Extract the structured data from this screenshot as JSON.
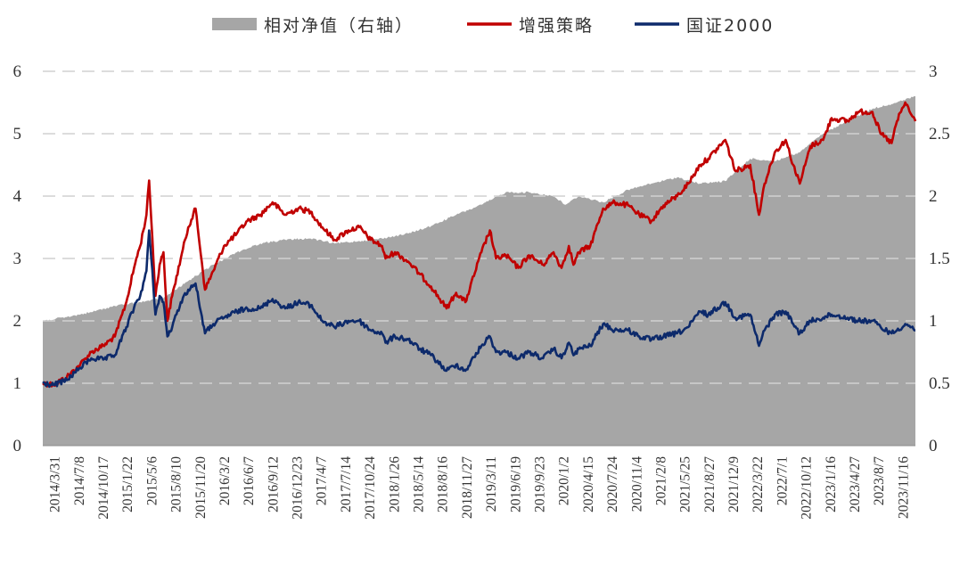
{
  "chart_data": {
    "type": "line",
    "legend": {
      "placement": "top-center",
      "items": [
        {
          "label": "相对净值（右轴）",
          "kind": "area",
          "color": "#a6a6a6"
        },
        {
          "label": "增强策略",
          "kind": "line",
          "color": "#c00000"
        },
        {
          "label": "国证2000",
          "kind": "line",
          "color": "#0d2a6b"
        }
      ]
    },
    "grid": true,
    "left_axis": {
      "min": 0,
      "max": 6,
      "ticks": [
        "0",
        "1",
        "2",
        "3",
        "4",
        "5",
        "6"
      ]
    },
    "right_axis": {
      "min": 0,
      "max": 3,
      "ticks": [
        "0",
        "0.5",
        "1",
        "1.5",
        "2",
        "2.5",
        "3"
      ]
    },
    "x_tick_labels": [
      "2014/3/31",
      "2014/7/8",
      "2014/10/17",
      "2015/1/22",
      "2015/5/6",
      "2015/8/10",
      "2015/11/20",
      "2016/3/2",
      "2016/6/7",
      "2016/9/12",
      "2016/12/23",
      "2017/4/7",
      "2017/7/14",
      "2017/10/24",
      "2018/1/26",
      "2018/5/14",
      "2018/8/16",
      "2018/11/27",
      "2019/3/11",
      "2019/6/19",
      "2019/9/23",
      "2020/1/2",
      "2020/4/15",
      "2020/7/24",
      "2020/11/4",
      "2021/2/8",
      "2021/5/25",
      "2021/8/27",
      "2021/12/9",
      "2022/3/22",
      "2022/7/1",
      "2022/10/12",
      "2023/1/16",
      "2023/4/27",
      "2023/8/7",
      "2023/11/16"
    ],
    "x_range": [
      "2014/3/31",
      "2024/1/31"
    ],
    "series": [
      {
        "name": "增强策略",
        "axis": "left",
        "color": "#c00000",
        "points": [
          [
            "2014/3/31",
            1.0
          ],
          [
            "2014/5/15",
            0.98
          ],
          [
            "2014/7/8",
            1.1
          ],
          [
            "2014/9/1",
            1.3
          ],
          [
            "2014/10/17",
            1.5
          ],
          [
            "2014/12/5",
            1.6
          ],
          [
            "2015/1/22",
            1.75
          ],
          [
            "2015/3/10",
            2.3
          ],
          [
            "2015/4/20",
            3.0
          ],
          [
            "2015/5/6",
            3.2
          ],
          [
            "2015/6/1",
            3.7
          ],
          [
            "2015/6/12",
            4.25
          ],
          [
            "2015/7/8",
            2.4
          ],
          [
            "2015/7/25",
            2.9
          ],
          [
            "2015/8/10",
            3.1
          ],
          [
            "2015/8/26",
            2.0
          ],
          [
            "2015/9/15",
            2.4
          ],
          [
            "2015/10/20",
            3.0
          ],
          [
            "2015/11/20",
            3.5
          ],
          [
            "2015/12/20",
            3.8
          ],
          [
            "2016/1/28",
            2.5
          ],
          [
            "2016/3/2",
            2.8
          ],
          [
            "2016/4/15",
            3.2
          ],
          [
            "2016/6/7",
            3.4
          ],
          [
            "2016/7/20",
            3.6
          ],
          [
            "2016/9/12",
            3.7
          ],
          [
            "2016/11/1",
            3.9
          ],
          [
            "2016/12/23",
            3.7
          ],
          [
            "2017/2/15",
            3.8
          ],
          [
            "2017/4/7",
            3.75
          ],
          [
            "2017/5/25",
            3.5
          ],
          [
            "2017/7/14",
            3.3
          ],
          [
            "2017/9/10",
            3.45
          ],
          [
            "2017/10/24",
            3.5
          ],
          [
            "2017/12/10",
            3.3
          ],
          [
            "2018/1/26",
            3.2
          ],
          [
            "2018/2/9",
            3.0
          ],
          [
            "2018/3/20",
            3.1
          ],
          [
            "2018/5/14",
            2.95
          ],
          [
            "2018/6/30",
            2.75
          ],
          [
            "2018/8/16",
            2.55
          ],
          [
            "2018/10/18",
            2.2
          ],
          [
            "2018/11/27",
            2.45
          ],
          [
            "2019/1/4",
            2.3
          ],
          [
            "2019/3/11",
            3.1
          ],
          [
            "2019/4/15",
            3.45
          ],
          [
            "2019/5/10",
            3.0
          ],
          [
            "2019/6/19",
            3.05
          ],
          [
            "2019/8/10",
            2.85
          ],
          [
            "2019/9/23",
            3.05
          ],
          [
            "2019/11/20",
            2.9
          ],
          [
            "2020/1/2",
            3.1
          ],
          [
            "2020/2/4",
            2.85
          ],
          [
            "2020/3/5",
            3.2
          ],
          [
            "2020/3/24",
            2.9
          ],
          [
            "2020/4/15",
            3.1
          ],
          [
            "2020/6/1",
            3.2
          ],
          [
            "2020/7/24",
            3.8
          ],
          [
            "2020/9/10",
            3.9
          ],
          [
            "2020/11/4",
            3.85
          ],
          [
            "2020/12/20",
            3.7
          ],
          [
            "2021/2/8",
            3.6
          ],
          [
            "2021/3/30",
            3.85
          ],
          [
            "2021/5/25",
            4.0
          ],
          [
            "2021/7/10",
            4.2
          ],
          [
            "2021/8/27",
            4.5
          ],
          [
            "2021/9/30",
            4.6
          ],
          [
            "2021/12/9",
            4.9
          ],
          [
            "2022/1/20",
            4.4
          ],
          [
            "2022/3/22",
            4.5
          ],
          [
            "2022/4/27",
            3.7
          ],
          [
            "2022/5/20",
            4.2
          ],
          [
            "2022/7/1",
            4.7
          ],
          [
            "2022/8/15",
            4.9
          ],
          [
            "2022/9/15",
            4.5
          ],
          [
            "2022/10/12",
            4.2
          ],
          [
            "2022/11/25",
            4.8
          ],
          [
            "2023/1/16",
            4.9
          ],
          [
            "2023/2/20",
            5.25
          ],
          [
            "2023/4/27",
            5.2
          ],
          [
            "2023/6/10",
            5.35
          ],
          [
            "2023/8/7",
            5.35
          ],
          [
            "2023/9/10",
            5.0
          ],
          [
            "2023/10/25",
            4.85
          ],
          [
            "2023/11/16",
            5.2
          ],
          [
            "2023/12/20",
            5.5
          ],
          [
            "2024/1/15",
            5.3
          ],
          [
            "2024/1/31",
            5.2
          ]
        ]
      },
      {
        "name": "国证2000",
        "axis": "left",
        "color": "#0d2a6b",
        "points": [
          [
            "2014/3/31",
            1.0
          ],
          [
            "2014/5/15",
            0.97
          ],
          [
            "2014/7/8",
            1.05
          ],
          [
            "2014/9/1",
            1.25
          ],
          [
            "2014/10/17",
            1.4
          ],
          [
            "2014/12/5",
            1.38
          ],
          [
            "2015/1/22",
            1.45
          ],
          [
            "2015/3/10",
            1.9
          ],
          [
            "2015/4/20",
            2.3
          ],
          [
            "2015/5/6",
            2.4
          ],
          [
            "2015/6/1",
            2.8
          ],
          [
            "2015/6/12",
            3.45
          ],
          [
            "2015/7/8",
            2.1
          ],
          [
            "2015/7/25",
            2.4
          ],
          [
            "2015/8/10",
            2.3
          ],
          [
            "2015/8/26",
            1.75
          ],
          [
            "2015/9/15",
            1.9
          ],
          [
            "2015/10/20",
            2.3
          ],
          [
            "2015/11/20",
            2.5
          ],
          [
            "2015/12/20",
            2.6
          ],
          [
            "2016/1/28",
            1.8
          ],
          [
            "2016/3/2",
            1.95
          ],
          [
            "2016/4/15",
            2.05
          ],
          [
            "2016/6/7",
            2.15
          ],
          [
            "2016/7/20",
            2.2
          ],
          [
            "2016/9/12",
            2.2
          ],
          [
            "2016/11/1",
            2.35
          ],
          [
            "2016/12/23",
            2.2
          ],
          [
            "2017/2/15",
            2.3
          ],
          [
            "2017/4/7",
            2.25
          ],
          [
            "2017/5/25",
            2.0
          ],
          [
            "2017/7/14",
            1.9
          ],
          [
            "2017/9/10",
            2.0
          ],
          [
            "2017/10/24",
            2.0
          ],
          [
            "2017/12/10",
            1.85
          ],
          [
            "2018/1/26",
            1.8
          ],
          [
            "2018/2/9",
            1.65
          ],
          [
            "2018/3/20",
            1.75
          ],
          [
            "2018/5/14",
            1.7
          ],
          [
            "2018/6/30",
            1.55
          ],
          [
            "2018/8/16",
            1.45
          ],
          [
            "2018/10/18",
            1.2
          ],
          [
            "2018/11/27",
            1.3
          ],
          [
            "2019/1/4",
            1.2
          ],
          [
            "2019/3/11",
            1.6
          ],
          [
            "2019/4/15",
            1.75
          ],
          [
            "2019/5/10",
            1.5
          ],
          [
            "2019/6/19",
            1.5
          ],
          [
            "2019/8/10",
            1.4
          ],
          [
            "2019/9/23",
            1.5
          ],
          [
            "2019/11/20",
            1.4
          ],
          [
            "2020/1/2",
            1.55
          ],
          [
            "2020/2/4",
            1.4
          ],
          [
            "2020/3/5",
            1.65
          ],
          [
            "2020/3/24",
            1.45
          ],
          [
            "2020/4/15",
            1.55
          ],
          [
            "2020/6/1",
            1.6
          ],
          [
            "2020/7/24",
            1.95
          ],
          [
            "2020/9/10",
            1.85
          ],
          [
            "2020/11/4",
            1.85
          ],
          [
            "2020/12/20",
            1.75
          ],
          [
            "2021/2/8",
            1.7
          ],
          [
            "2021/3/30",
            1.75
          ],
          [
            "2021/5/25",
            1.8
          ],
          [
            "2021/7/10",
            1.9
          ],
          [
            "2021/8/27",
            2.15
          ],
          [
            "2021/9/30",
            2.1
          ],
          [
            "2021/12/9",
            2.3
          ],
          [
            "2022/1/20",
            2.05
          ],
          [
            "2022/3/22",
            2.1
          ],
          [
            "2022/4/27",
            1.6
          ],
          [
            "2022/5/20",
            1.85
          ],
          [
            "2022/7/1",
            2.1
          ],
          [
            "2022/8/15",
            2.15
          ],
          [
            "2022/9/15",
            1.95
          ],
          [
            "2022/10/12",
            1.8
          ],
          [
            "2022/11/25",
            2.0
          ],
          [
            "2023/1/16",
            2.05
          ],
          [
            "2023/2/20",
            2.1
          ],
          [
            "2023/4/27",
            2.05
          ],
          [
            "2023/6/10",
            2.0
          ],
          [
            "2023/8/7",
            2.0
          ],
          [
            "2023/9/10",
            1.9
          ],
          [
            "2023/10/25",
            1.8
          ],
          [
            "2023/11/16",
            1.85
          ],
          [
            "2023/12/20",
            1.95
          ],
          [
            "2024/1/15",
            1.9
          ],
          [
            "2024/1/31",
            1.85
          ]
        ]
      },
      {
        "name": "相对净值（右轴）",
        "axis": "right",
        "color": "#a6a6a6",
        "points": [
          [
            "2014/3/31",
            1.0
          ],
          [
            "2014/7/8",
            1.03
          ],
          [
            "2014/10/17",
            1.07
          ],
          [
            "2015/1/22",
            1.12
          ],
          [
            "2015/5/6",
            1.15
          ],
          [
            "2015/8/10",
            1.18
          ],
          [
            "2015/11/20",
            1.32
          ],
          [
            "2016/3/2",
            1.45
          ],
          [
            "2016/6/7",
            1.55
          ],
          [
            "2016/9/12",
            1.62
          ],
          [
            "2016/12/23",
            1.65
          ],
          [
            "2017/4/7",
            1.66
          ],
          [
            "2017/7/14",
            1.62
          ],
          [
            "2017/10/24",
            1.64
          ],
          [
            "2018/1/26",
            1.66
          ],
          [
            "2018/5/14",
            1.7
          ],
          [
            "2018/8/16",
            1.76
          ],
          [
            "2018/11/27",
            1.85
          ],
          [
            "2019/3/11",
            1.93
          ],
          [
            "2019/6/19",
            2.03
          ],
          [
            "2019/9/23",
            2.03
          ],
          [
            "2020/1/2",
            2.0
          ],
          [
            "2020/2/20",
            1.93
          ],
          [
            "2020/4/15",
            2.0
          ],
          [
            "2020/7/24",
            1.95
          ],
          [
            "2020/11/4",
            2.05
          ],
          [
            "2021/2/8",
            2.1
          ],
          [
            "2021/5/25",
            2.15
          ],
          [
            "2021/8/27",
            2.1
          ],
          [
            "2021/12/9",
            2.12
          ],
          [
            "2022/3/22",
            2.3
          ],
          [
            "2022/7/1",
            2.28
          ],
          [
            "2022/10/12",
            2.35
          ],
          [
            "2023/1/16",
            2.5
          ],
          [
            "2023/4/27",
            2.6
          ],
          [
            "2023/8/7",
            2.7
          ],
          [
            "2023/11/16",
            2.75
          ],
          [
            "2024/1/31",
            2.8
          ]
        ]
      }
    ]
  }
}
